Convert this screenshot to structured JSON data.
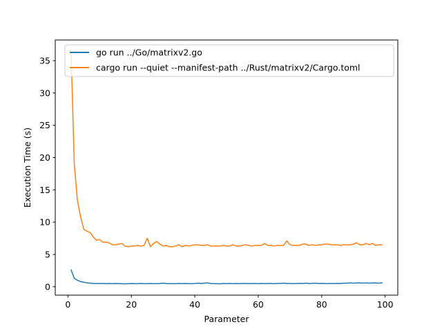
{
  "chart_data": {
    "type": "line",
    "title": "",
    "xlabel": "Parameter",
    "ylabel": "Execution Time (s)",
    "xlim": [
      -4,
      104
    ],
    "ylim": [
      -1.3,
      38.2
    ],
    "xticks": [
      0,
      20,
      40,
      60,
      80,
      100
    ],
    "yticks": [
      0,
      5,
      10,
      15,
      20,
      25,
      30,
      35
    ],
    "grid": false,
    "legend_position": "upper-left",
    "series": [
      {
        "name": "go run ../Go/matrixv2.go",
        "color": "#1f77b4",
        "x": [
          1,
          2,
          3,
          4,
          5,
          6,
          7,
          8,
          9,
          10,
          11,
          12,
          13,
          14,
          15,
          16,
          17,
          18,
          19,
          20,
          21,
          22,
          23,
          24,
          25,
          26,
          27,
          28,
          29,
          30,
          31,
          32,
          33,
          34,
          35,
          36,
          37,
          38,
          39,
          40,
          41,
          42,
          43,
          44,
          45,
          46,
          47,
          48,
          49,
          50,
          51,
          52,
          53,
          54,
          55,
          56,
          57,
          58,
          59,
          60,
          61,
          62,
          63,
          64,
          65,
          66,
          67,
          68,
          69,
          70,
          71,
          72,
          73,
          74,
          75,
          76,
          77,
          78,
          79,
          80,
          81,
          82,
          83,
          84,
          85,
          86,
          87,
          88,
          89,
          90,
          91,
          92,
          93,
          94,
          95,
          96,
          97,
          98,
          99
        ],
        "values": [
          2.6,
          1.3,
          1.0,
          0.8,
          0.7,
          0.6,
          0.55,
          0.5,
          0.5,
          0.5,
          0.5,
          0.48,
          0.5,
          0.47,
          0.5,
          0.48,
          0.47,
          0.45,
          0.47,
          0.5,
          0.48,
          0.47,
          0.5,
          0.48,
          0.47,
          0.5,
          0.48,
          0.47,
          0.5,
          0.55,
          0.5,
          0.47,
          0.48,
          0.47,
          0.5,
          0.48,
          0.5,
          0.48,
          0.47,
          0.5,
          0.55,
          0.5,
          0.55,
          0.6,
          0.5,
          0.47,
          0.48,
          0.45,
          0.5,
          0.48,
          0.5,
          0.47,
          0.5,
          0.48,
          0.5,
          0.5,
          0.48,
          0.5,
          0.5,
          0.47,
          0.5,
          0.48,
          0.5,
          0.5,
          0.48,
          0.5,
          0.52,
          0.55,
          0.5,
          0.5,
          0.48,
          0.5,
          0.52,
          0.5,
          0.55,
          0.5,
          0.52,
          0.55,
          0.5,
          0.52,
          0.5,
          0.48,
          0.5,
          0.5,
          0.52,
          0.5,
          0.55,
          0.55,
          0.6,
          0.55,
          0.58,
          0.6,
          0.55,
          0.6,
          0.55,
          0.58,
          0.6,
          0.55,
          0.6
        ]
      },
      {
        "name": "cargo run --quiet --manifest-path ../Rust/matrixv2/Cargo.toml",
        "color": "#ff7f0e",
        "x": [
          1,
          2,
          3,
          4,
          5,
          6,
          7,
          8,
          9,
          10,
          11,
          12,
          13,
          14,
          15,
          16,
          17,
          18,
          19,
          20,
          21,
          22,
          23,
          24,
          25,
          26,
          27,
          28,
          29,
          30,
          31,
          32,
          33,
          34,
          35,
          36,
          37,
          38,
          39,
          40,
          41,
          42,
          43,
          44,
          45,
          46,
          47,
          48,
          49,
          50,
          51,
          52,
          53,
          54,
          55,
          56,
          57,
          58,
          59,
          60,
          61,
          62,
          63,
          64,
          65,
          66,
          67,
          68,
          69,
          70,
          71,
          72,
          73,
          74,
          75,
          76,
          77,
          78,
          79,
          80,
          81,
          82,
          83,
          84,
          85,
          86,
          87,
          88,
          89,
          90,
          91,
          92,
          93,
          94,
          95,
          96,
          97,
          98,
          99
        ],
        "values": [
          36.2,
          19.0,
          13.3,
          10.8,
          8.9,
          8.6,
          8.4,
          7.7,
          7.2,
          7.3,
          6.9,
          6.9,
          6.8,
          6.5,
          6.5,
          6.6,
          6.7,
          6.3,
          6.2,
          6.3,
          6.3,
          6.4,
          6.3,
          6.4,
          7.5,
          6.2,
          6.7,
          7.0,
          6.6,
          6.3,
          6.4,
          6.2,
          6.2,
          6.3,
          6.5,
          6.2,
          6.4,
          6.3,
          6.4,
          6.5,
          6.5,
          6.4,
          6.4,
          6.5,
          6.3,
          6.3,
          6.3,
          6.3,
          6.4,
          6.3,
          6.3,
          6.5,
          6.3,
          6.3,
          6.4,
          6.5,
          6.4,
          6.3,
          6.4,
          6.4,
          6.4,
          6.7,
          6.4,
          6.4,
          6.3,
          6.4,
          6.4,
          6.4,
          7.1,
          6.5,
          6.4,
          6.4,
          6.4,
          6.6,
          6.6,
          6.4,
          6.5,
          6.4,
          6.5,
          6.5,
          6.6,
          6.6,
          6.5,
          6.5,
          6.5,
          6.4,
          6.5,
          6.5,
          6.5,
          6.6,
          6.8,
          6.5,
          6.5,
          6.7,
          6.5,
          6.7,
          6.4,
          6.5,
          6.5
        ]
      }
    ]
  }
}
